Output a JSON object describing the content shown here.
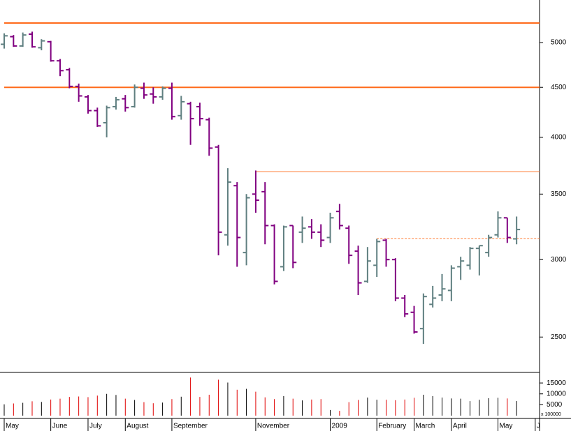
{
  "chart_data": {
    "type": "ohlc",
    "open": [
      4980,
      5070,
      4960,
      5100,
      4940,
      5010,
      4790,
      4690,
      4510,
      4400,
      4260,
      4140,
      4300,
      4380,
      4300,
      4490,
      4430,
      4400,
      4490,
      4210,
      4330,
      4300,
      4170,
      3910,
      3180,
      3570,
      3050,
      3500,
      3520,
      3250,
      2950,
      3250,
      3200,
      3240,
      3200,
      3160,
      3360,
      3230,
      3060,
      2850,
      2960,
      3140,
      3000,
      2740,
      2650,
      2550,
      2700,
      2760,
      2790,
      2950,
      2960,
      3080,
      3050,
      3180,
      3310,
      3150
    ],
    "high": [
      5110,
      5090,
      5120,
      5130,
      5040,
      5020,
      4810,
      4710,
      4540,
      4420,
      4290,
      4310,
      4400,
      4420,
      4530,
      4550,
      4500,
      4510,
      4550,
      4410,
      4350,
      4340,
      4190,
      3930,
      3720,
      3600,
      3500,
      3700,
      3600,
      3260,
      3250,
      3250,
      3320,
      3300,
      3260,
      3350,
      3420,
      3250,
      3100,
      3090,
      3150,
      3150,
      3010,
      2760,
      2690,
      2770,
      2820,
      2900,
      2960,
      3020,
      3090,
      3100,
      3180,
      3360,
      3310,
      3320
    ],
    "low": [
      4930,
      4950,
      4950,
      4940,
      4910,
      4780,
      4620,
      4490,
      4350,
      4230,
      4100,
      4000,
      4270,
      4250,
      4290,
      4380,
      4330,
      4370,
      4170,
      4170,
      3930,
      4110,
      3830,
      3030,
      3100,
      2950,
      2960,
      3350,
      3110,
      2830,
      2920,
      2940,
      3120,
      3150,
      3090,
      3120,
      3220,
      2970,
      2760,
      2840,
      2880,
      2950,
      2720,
      2620,
      2520,
      2460,
      2680,
      2720,
      2720,
      2860,
      2930,
      2890,
      3020,
      3160,
      3120,
      3110
    ],
    "close": [
      5080,
      4960,
      5090,
      4950,
      5020,
      4790,
      4680,
      4510,
      4410,
      4260,
      4110,
      4290,
      4370,
      4290,
      4500,
      4420,
      4400,
      4490,
      4200,
      4350,
      4180,
      4180,
      3900,
      3200,
      3600,
      3160,
      3470,
      3450,
      3250,
      2850,
      3240,
      2980,
      3230,
      3200,
      3140,
      3310,
      3250,
      3030,
      2840,
      2990,
      3130,
      3000,
      2740,
      2640,
      2530,
      2750,
      2740,
      2800,
      2940,
      2990,
      3080,
      3100,
      3160,
      3310,
      3160,
      3220
    ],
    "volume": [
      5200,
      5600,
      5900,
      6600,
      6300,
      7400,
      7800,
      8600,
      8800,
      8500,
      9200,
      10000,
      9500,
      7800,
      7200,
      6200,
      5700,
      6000,
      7600,
      8700,
      17500,
      8600,
      9600,
      16500,
      15200,
      11900,
      12300,
      11000,
      8400,
      7600,
      9000,
      7800,
      7000,
      7400,
      7600,
      2600,
      2200,
      6200,
      7200,
      8300,
      7300,
      7300,
      7100,
      7400,
      8200,
      9600,
      9000,
      8300,
      7900,
      7800,
      6700,
      7300,
      8000,
      8200,
      7900,
      6700
    ],
    "up_color": "#5f7f80",
    "down_color": "#800080",
    "volume_up_color": "#000000",
    "volume_down_color": "#e00000",
    "log_scale": true,
    "ylim": [
      2304,
      5527
    ],
    "yticks": [
      2500,
      3000,
      3500,
      4000,
      4500,
      5000
    ],
    "volume_ylim": [
      0,
      19200
    ],
    "volume_yticks": [
      5000,
      10000,
      15000
    ],
    "volume_unit": "x 100000",
    "reference_lines": [
      {
        "value": 5236,
        "color": "#ff6a1a",
        "style": "thick",
        "start": 0
      },
      {
        "value": 4500,
        "color": "#ff6a1a",
        "style": "thick",
        "start": 0
      },
      {
        "value": 3690,
        "color": "#ff7a30",
        "style": "thin",
        "start": 27
      },
      {
        "value": 3152,
        "color": "#ff7a30",
        "style": "dashed",
        "start": 40
      }
    ],
    "x_labels": [
      {
        "label": "May",
        "index": 0
      },
      {
        "label": "June",
        "index": 5
      },
      {
        "label": "July",
        "index": 9
      },
      {
        "label": "August",
        "index": 13
      },
      {
        "label": "September",
        "index": 18
      },
      {
        "label": "November",
        "index": 27
      },
      {
        "label": "2009",
        "index": 35
      },
      {
        "label": "February",
        "index": 40
      },
      {
        "label": "March",
        "index": 44
      },
      {
        "label": "April",
        "index": 48
      },
      {
        "label": "May",
        "index": 53
      },
      {
        "label": "J",
        "index": 57
      }
    ]
  }
}
